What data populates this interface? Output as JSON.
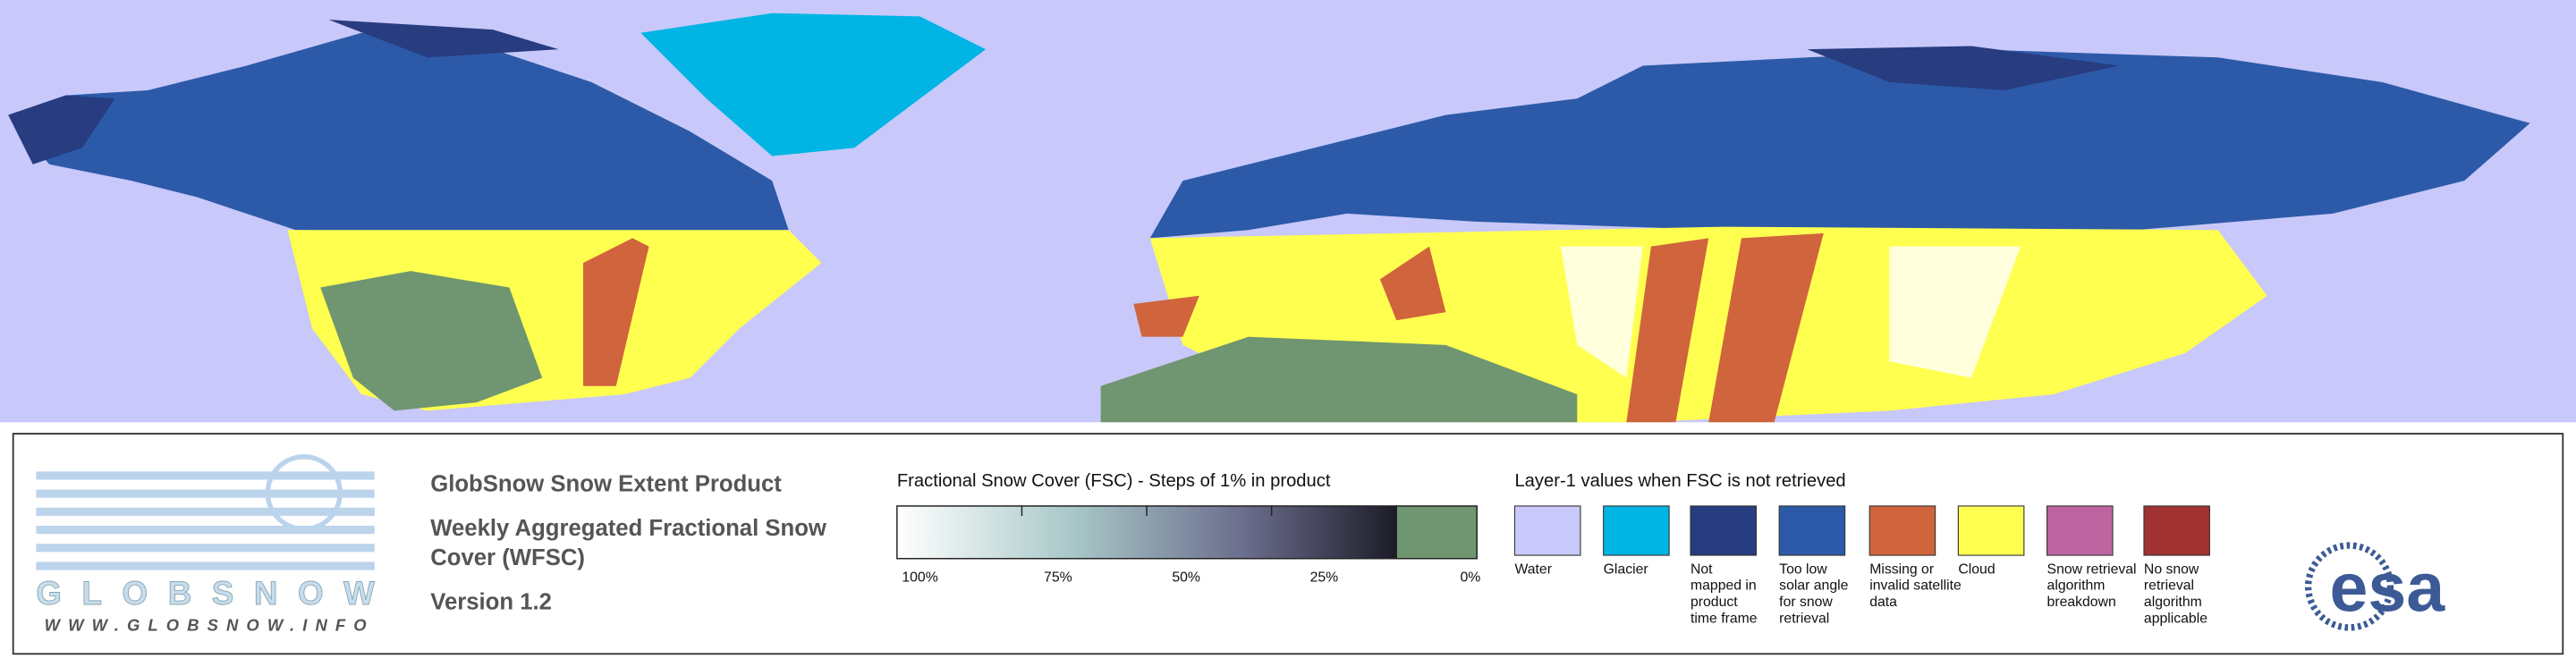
{
  "product": {
    "title": "GlobSnow Snow Extent Product",
    "subtitle_lines": [
      "Weekly Aggregated Fractional Snow",
      "Cover (WFSC)"
    ],
    "version": "Version 1.2"
  },
  "logo": {
    "name": "GLOBSNOW",
    "url": "WWW.GLOBSNOW.INFO",
    "partner": "esa"
  },
  "colorbar": {
    "title": "Fractional Snow Cover (FSC) - Steps of 1% in product",
    "ticks": [
      "100%",
      "75%",
      "50%",
      "25%",
      "0%"
    ],
    "no_snow_color": "#6f9670"
  },
  "layer1": {
    "title": "Layer-1 values when FSC is not retrieved",
    "items": [
      {
        "color": "#c8c8fa",
        "lines": [
          "Water"
        ]
      },
      {
        "color": "#00b4e4",
        "lines": [
          "Glacier"
        ]
      },
      {
        "color": "#283c80",
        "lines": [
          "Not",
          "mapped in",
          "product",
          "time frame"
        ]
      },
      {
        "color": "#2c5aa8",
        "lines": [
          "Too low",
          "solar angle",
          "for snow",
          "retrieval"
        ]
      },
      {
        "color": "#d0643c",
        "lines": [
          "Missing or",
          "invalid satellite",
          "data"
        ]
      },
      {
        "color": "#ffff50",
        "lines": [
          "Cloud"
        ]
      },
      {
        "color": "#be64a0",
        "lines": [
          "Snow retrieval",
          "algorithm",
          "breakdown"
        ]
      },
      {
        "color": "#a03232",
        "lines": [
          "No snow",
          "retrieval",
          "algorithm",
          "applicable"
        ]
      }
    ]
  }
}
